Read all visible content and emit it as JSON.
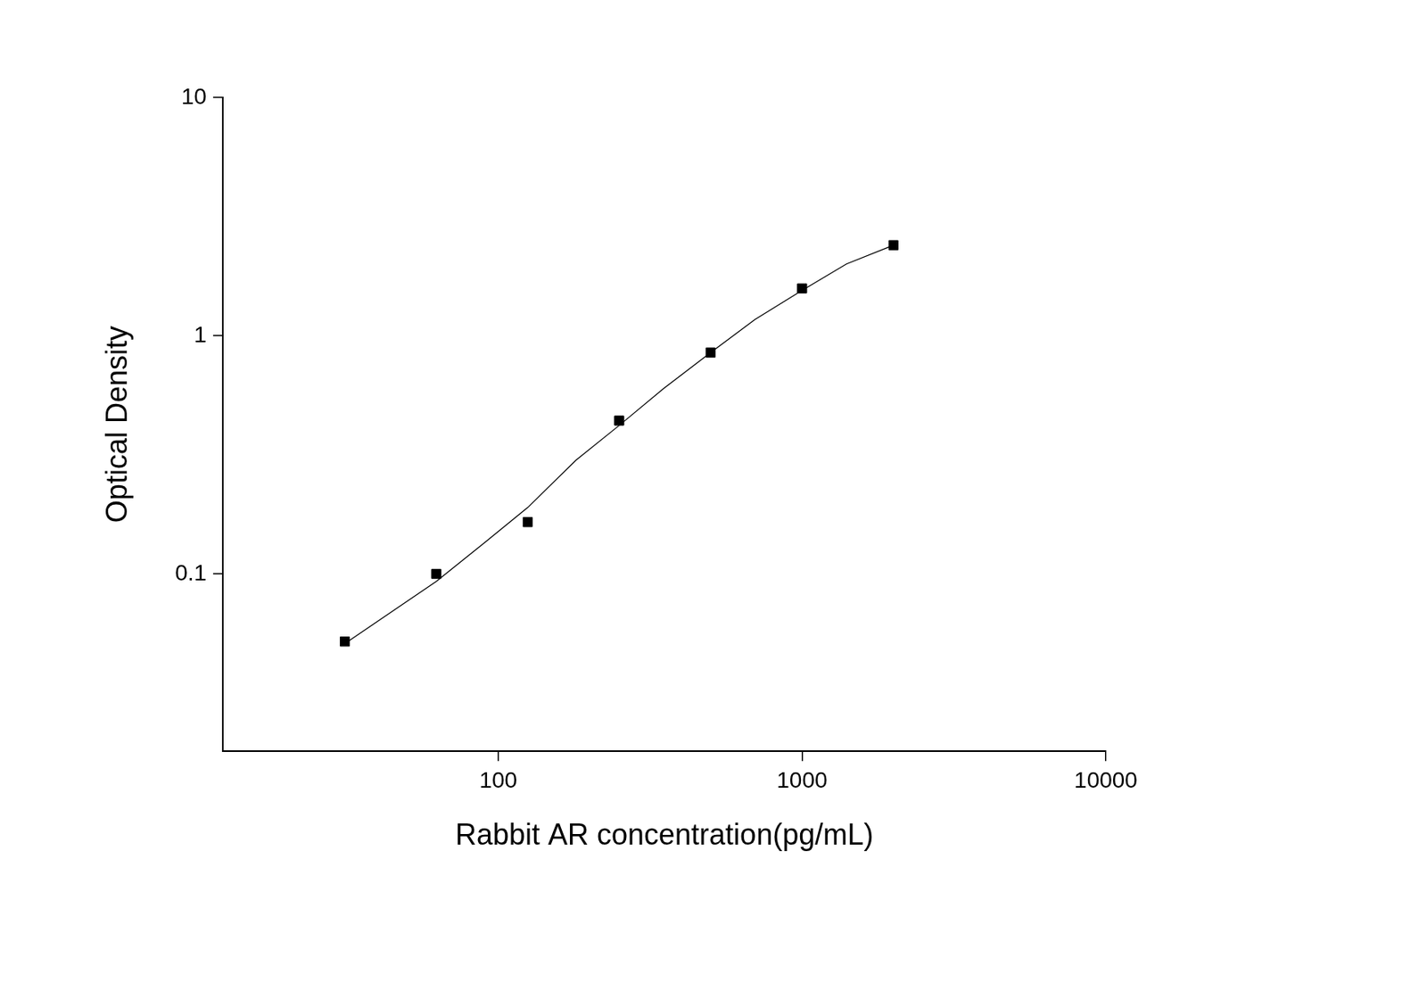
{
  "chart_data": {
    "type": "scatter",
    "x_label": "Rabbit AR concentration(pg/mL)",
    "y_label": "Optical Density",
    "log": true,
    "grid": false,
    "xlim": [
      12.4,
      10000
    ],
    "ylim": [
      0.018,
      10
    ],
    "xticks": [
      100,
      1000,
      10000
    ],
    "yticks": [
      0.1,
      1,
      10
    ],
    "series": [
      {
        "type": "line",
        "marker": "none",
        "line_style": "solid",
        "color": "#000000",
        "x": [
          31.25,
          45,
          62.5,
          90,
          125,
          180,
          250,
          350,
          500,
          700,
          1000,
          1400,
          2000
        ],
        "values": [
          0.051,
          0.07,
          0.093,
          0.135,
          0.19,
          0.3,
          0.42,
          0.6,
          0.85,
          1.17,
          1.55,
          2.0,
          2.4
        ]
      },
      {
        "type": "scatter",
        "marker": "square",
        "line_style": "none",
        "color": "#000000",
        "x": [
          31.25,
          62.5,
          125,
          250,
          500,
          1000,
          2000
        ],
        "values": [
          0.052,
          0.1,
          0.165,
          0.44,
          0.85,
          1.58,
          2.4
        ]
      }
    ]
  }
}
